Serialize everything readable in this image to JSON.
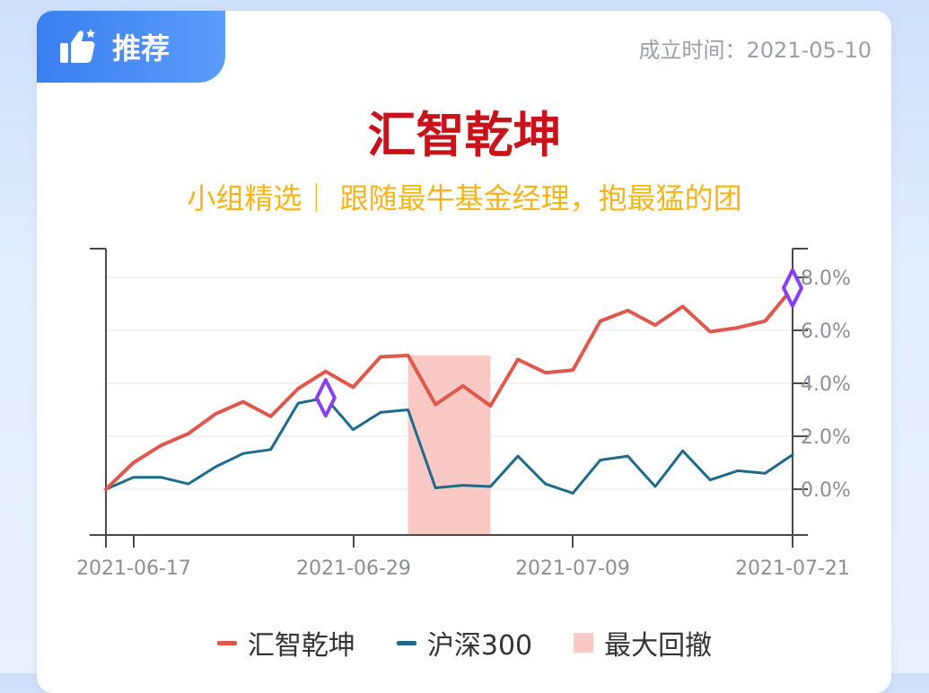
{
  "header": {
    "tag_label": "推荐",
    "established": "成立时间：2021-05-10"
  },
  "title": "汇智乾坤",
  "subtitle": "小组精选｜ 跟随最牛基金经理，抱最猛的团",
  "colors": {
    "fund": "#e0574c",
    "index": "#1d6a8a",
    "drawdown": "#f9c9c6",
    "marker": "#8a3ff0",
    "tag": "#3a7ff0",
    "title": "#c8131a",
    "subtitle": "#f4b41a"
  },
  "icons": {
    "tag": "thumbs-up-icon",
    "marker": "diamond-icon"
  },
  "chart_data": {
    "type": "line",
    "x_ticks": [
      "2021-06-17",
      "2021-06-29",
      "2021-07-09",
      "2021-07-21"
    ],
    "y_ticks": [
      "8.0%",
      "6.0%",
      "4.0%",
      "2.0%",
      "0.0%"
    ],
    "ylim": [
      -1.7,
      9.1
    ],
    "x_dates": [
      "2021-06-16",
      "2021-06-17",
      "2021-06-18",
      "2021-06-21",
      "2021-06-22",
      "2021-06-23",
      "2021-06-24",
      "2021-06-25",
      "2021-06-28",
      "2021-06-29",
      "2021-06-30",
      "2021-07-01",
      "2021-07-02",
      "2021-07-05",
      "2021-07-06",
      "2021-07-07",
      "2021-07-08",
      "2021-07-09",
      "2021-07-12",
      "2021-07-13",
      "2021-07-14",
      "2021-07-15",
      "2021-07-16",
      "2021-07-19",
      "2021-07-20",
      "2021-07-21"
    ],
    "series": [
      {
        "name": "汇智乾坤",
        "values": [
          0.0,
          1.0,
          1.65,
          2.1,
          2.85,
          3.3,
          2.75,
          3.8,
          4.45,
          3.85,
          5.0,
          5.05,
          3.2,
          3.9,
          3.15,
          4.9,
          4.4,
          4.5,
          6.35,
          6.75,
          6.2,
          6.9,
          5.95,
          6.1,
          6.35,
          7.6
        ]
      },
      {
        "name": "沪深300",
        "values": [
          0.0,
          0.45,
          0.45,
          0.2,
          0.85,
          1.35,
          1.5,
          3.25,
          3.45,
          2.25,
          2.9,
          3.0,
          0.05,
          0.15,
          0.1,
          1.25,
          0.2,
          -0.15,
          1.1,
          1.25,
          0.1,
          1.45,
          0.35,
          0.7,
          0.6,
          1.3
        ]
      }
    ],
    "drawdown_range": [
      "2021-07-01",
      "2021-07-06"
    ],
    "markers": [
      {
        "date": "2021-06-28",
        "value": 3.45
      },
      {
        "date": "2021-07-21",
        "value": 7.6
      }
    ],
    "legend": [
      "汇智乾坤",
      "沪深300",
      "最大回撤"
    ],
    "legend_position": "bottom"
  }
}
